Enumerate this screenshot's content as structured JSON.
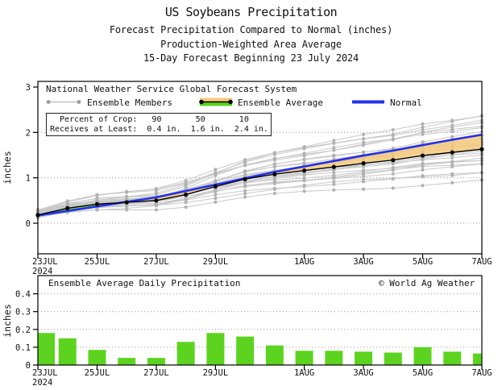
{
  "header": {
    "title1": "US Soybeans Precipitation",
    "title2": "Forecast Precipitation Compared to Normal (inches)",
    "title3": "Production-Weighted Area Average",
    "title4": "15-Day Forecast Beginning 23 July 2024"
  },
  "legend": {
    "system": "National Weather Service Global Forecast System",
    "members_label": "Ensemble Members",
    "average_label": "Ensemble Average",
    "normal_label": "Normal"
  },
  "info_box": {
    "line1": "  Percent of Crop:   90       50       10",
    "line2": "Receives at Least:  0.4 in.  1.6 in.  2.4 in."
  },
  "bottom_header": {
    "title": "Ensemble Average Daily Precipitation",
    "credit": "© World Ag Weather"
  },
  "colors": {
    "bar_green": "#5cd41f",
    "band_tan": "#f5c97d",
    "band_green": "#5cd41f",
    "normal_blue": "#2230ee",
    "member_gray": "#c8c8c8",
    "member_dot_gray": "#b2b2b2",
    "average_black": "#000000",
    "grid_gray": "#999999",
    "frame_black": "#000000",
    "text": "#111111"
  },
  "chart_data": [
    {
      "type": "line",
      "title": "15-day cumulative forecast precipitation vs normal",
      "xlabel": "",
      "ylabel": "inches",
      "ylim": [
        0,
        3
      ],
      "yticks": [
        0,
        1,
        2,
        3
      ],
      "grid_values": [
        0,
        1,
        2
      ],
      "days": 16,
      "x_tick_labels": [
        {
          "day": 0,
          "label": "23JUL"
        },
        {
          "day": 2,
          "label": "25JUL"
        },
        {
          "day": 4,
          "label": "27JUL"
        },
        {
          "day": 6,
          "label": "29JUL"
        },
        {
          "day": 9,
          "label": "1AUG"
        },
        {
          "day": 11,
          "label": "3AUG"
        },
        {
          "day": 13,
          "label": "5AUG"
        },
        {
          "day": 15,
          "label": "7AUG"
        }
      ],
      "year_label": "2024",
      "series": [
        {
          "name": "Ensemble Average",
          "values": [
            0.18,
            0.33,
            0.42,
            0.46,
            0.5,
            0.63,
            0.81,
            0.97,
            1.08,
            1.16,
            1.24,
            1.32,
            1.39,
            1.49,
            1.56,
            1.63
          ]
        },
        {
          "name": "Normal",
          "values": [
            0.17,
            0.27,
            0.37,
            0.47,
            0.57,
            0.71,
            0.85,
            0.99,
            1.13,
            1.25,
            1.37,
            1.49,
            1.6,
            1.72,
            1.84,
            1.95
          ]
        }
      ],
      "band_note": "tan fill between Normal and Ensemble Average where Normal is higher; green where Average is higher",
      "ensemble_members": {
        "count": 26,
        "end_value_range": [
          0.95,
          2.4
        ],
        "params": [
          {
            "s": 0.15,
            "m": 0.55,
            "a": 0.03,
            "p": 0.5
          },
          {
            "s": 0.22,
            "m": 0.62,
            "a": 0.02,
            "p": 2.9
          },
          {
            "s": 0.12,
            "m": 0.68,
            "a": 0.04,
            "p": 5.3
          },
          {
            "s": 0.26,
            "m": 0.72,
            "a": 0.025,
            "p": 1.4
          },
          {
            "s": 0.18,
            "m": 0.78,
            "a": 0.035,
            "p": 3.8
          },
          {
            "s": 0.24,
            "m": 0.82,
            "a": 0.022,
            "p": 0.2
          },
          {
            "s": 0.14,
            "m": 0.86,
            "a": 0.038,
            "p": 2.6
          },
          {
            "s": 0.2,
            "m": 0.9,
            "a": 0.028,
            "p": 5.0
          },
          {
            "s": 0.28,
            "m": 0.93,
            "a": 0.033,
            "p": 1.1
          },
          {
            "s": 0.16,
            "m": 0.96,
            "a": 0.024,
            "p": 3.5
          },
          {
            "s": 0.22,
            "m": 0.99,
            "a": 0.036,
            "p": 5.9
          },
          {
            "s": 0.13,
            "m": 1.01,
            "a": 0.027,
            "p": 0.8
          },
          {
            "s": 0.25,
            "m": 1.03,
            "a": 0.032,
            "p": 3.2
          },
          {
            "s": 0.19,
            "m": 1.06,
            "a": 0.023,
            "p": 5.6
          },
          {
            "s": 0.27,
            "m": 1.09,
            "a": 0.037,
            "p": 1.7
          },
          {
            "s": 0.15,
            "m": 1.13,
            "a": 0.026,
            "p": 4.1
          },
          {
            "s": 0.23,
            "m": 1.17,
            "a": 0.034,
            "p": 0.0
          },
          {
            "s": 0.17,
            "m": 1.21,
            "a": 0.025,
            "p": 2.3
          },
          {
            "s": 0.29,
            "m": 1.25,
            "a": 0.031,
            "p": 4.7
          },
          {
            "s": 0.14,
            "m": 1.29,
            "a": 0.029,
            "p": 1.0
          },
          {
            "s": 0.21,
            "m": 1.33,
            "a": 0.035,
            "p": 3.4
          },
          {
            "s": 0.26,
            "m": 1.38,
            "a": 0.024,
            "p": 5.8
          },
          {
            "s": 0.16,
            "m": 1.42,
            "a": 0.033,
            "p": 2.0
          },
          {
            "s": 0.24,
            "m": 1.46,
            "a": 0.027,
            "p": 4.4
          },
          {
            "s": 0.19,
            "m": 1.5,
            "a": 0.03,
            "p": 0.7
          },
          {
            "s": 0.3,
            "m": 0.75,
            "a": 0.04,
            "p": 3.0
          }
        ]
      }
    },
    {
      "type": "bar",
      "title": "Ensemble Average Daily Precipitation",
      "xlabel": "",
      "ylabel": "inches",
      "ylim": [
        0,
        0.45
      ],
      "yticks": [
        0,
        0.1,
        0.2,
        0.3,
        0.4
      ],
      "grid_values": [
        0.1,
        0.2,
        0.3,
        0.4
      ],
      "x_tick_labels": [
        {
          "day": 0,
          "label": "23JUL"
        },
        {
          "day": 2,
          "label": "25JUL"
        },
        {
          "day": 4,
          "label": "27JUL"
        },
        {
          "day": 6,
          "label": "29JUL"
        },
        {
          "day": 9,
          "label": "1AUG"
        },
        {
          "day": 11,
          "label": "3AUG"
        },
        {
          "day": 13,
          "label": "5AUG"
        },
        {
          "day": 15,
          "label": "7AUG"
        }
      ],
      "year_label": "2024",
      "values": [
        0.18,
        0.15,
        0.085,
        0.04,
        0.04,
        0.13,
        0.18,
        0.16,
        0.11,
        0.08,
        0.08,
        0.075,
        0.07,
        0.1,
        0.075,
        0.065
      ]
    }
  ]
}
